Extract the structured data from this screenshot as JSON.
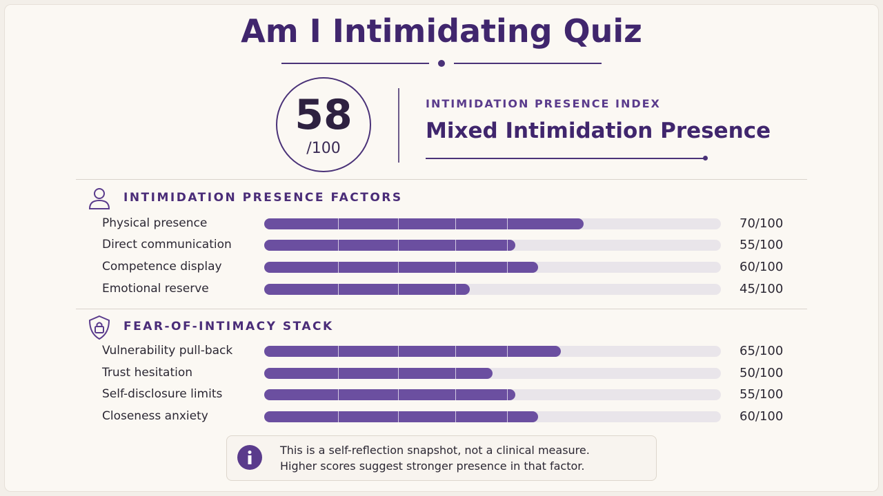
{
  "header": {
    "title": "Am I Intimidating Quiz"
  },
  "score": {
    "value": 58,
    "label": "/100",
    "kicker": "INTIMIDATION PRESENCE INDEX",
    "result": "Mixed Intimidation Presence"
  },
  "sections": [
    {
      "title": "INTIMIDATION PRESENCE FACTORS",
      "xlim": [
        0,
        100
      ],
      "items": [
        {
          "label": "Physical presence",
          "value": 70,
          "value_label": "70/100"
        },
        {
          "label": "Direct communication",
          "value": 55,
          "value_label": "55/100"
        },
        {
          "label": "Competence display",
          "value": 60,
          "value_label": "60/100"
        },
        {
          "label": "Emotional reserve",
          "value": 45,
          "value_label": "45/100"
        }
      ]
    },
    {
      "title": "FEAR-OF-INTIMACY STACK",
      "xlim": [
        0,
        100
      ],
      "items": [
        {
          "label": "Vulnerability pull-back",
          "value": 65,
          "value_label": "65/100"
        },
        {
          "label": "Trust hesitation",
          "value": 50,
          "value_label": "50/100"
        },
        {
          "label": "Self-disclosure limits",
          "value": 55,
          "value_label": "55/100"
        },
        {
          "label": "Closeness anxiety",
          "value": 60,
          "value_label": "60/100"
        }
      ]
    }
  ],
  "note": {
    "lines": [
      "This is a self-reflection snapshot, not a clinical measure.",
      "Higher scores suggest stronger presence in that factor."
    ]
  }
}
